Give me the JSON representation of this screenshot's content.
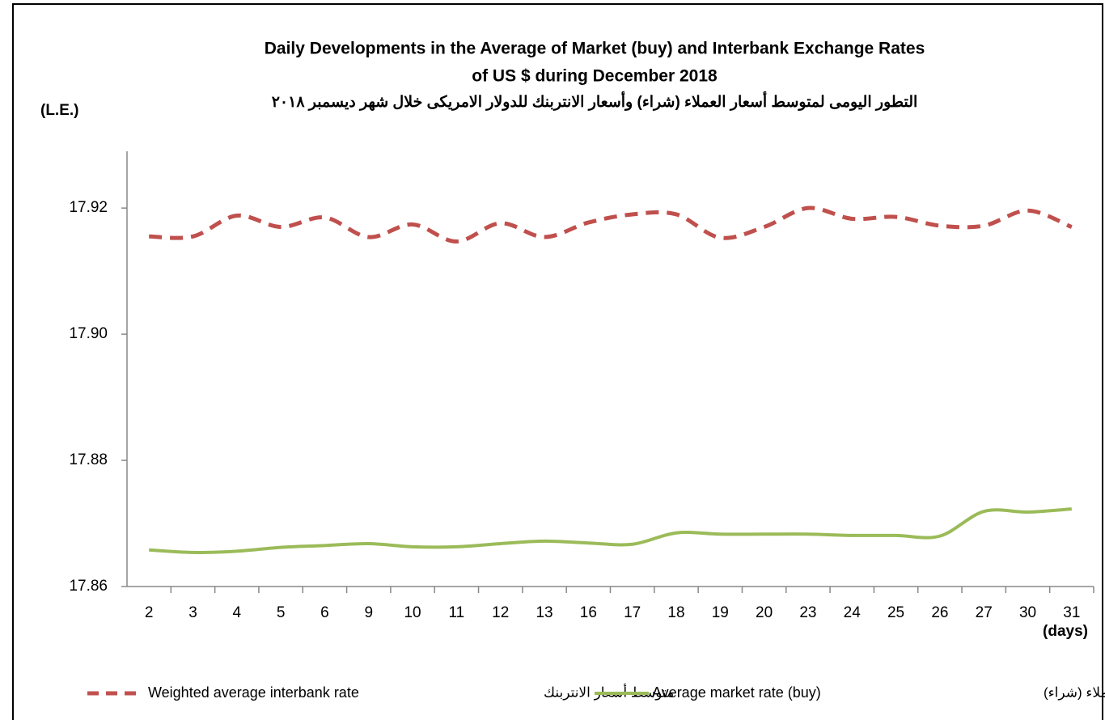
{
  "chart_data": {
    "type": "line",
    "title": [
      "Daily Developments in the Average of Market (buy) and Interbank Exchange Rates",
      "of US $ during December 2018"
    ],
    "subtitle": "التطور اليومى لمتوسط أسعار العملاء (شراء) وأسعار الانتربنك للدولار الامريكى خلال شهر ديسمبر ٢٠١٨",
    "y_label": "(L.E.)",
    "x_label": "(days)",
    "categories": [
      "2",
      "3",
      "4",
      "5",
      "6",
      "9",
      "10",
      "11",
      "12",
      "13",
      "16",
      "17",
      "18",
      "19",
      "20",
      "23",
      "24",
      "25",
      "26",
      "27",
      "30",
      "31"
    ],
    "series": [
      {
        "name": "Weighted average interbank rate",
        "name_ar": "متوسط أسعار الانتربنك",
        "color": "#c0504d",
        "dashed": true,
        "values": [
          17.9155,
          17.9155,
          17.9188,
          17.917,
          17.9185,
          17.9154,
          17.9174,
          17.9147,
          17.9176,
          17.9154,
          17.9177,
          17.919,
          17.919,
          17.9153,
          17.917,
          17.92,
          17.9183,
          17.9186,
          17.9172,
          17.9172,
          17.9196,
          17.917
        ]
      },
      {
        "name": "Average market rate (buy)",
        "name_ar": "متوسط أسعار العملاء (شراء)",
        "color": "#9bbb59",
        "dashed": false,
        "values": [
          17.8658,
          17.8654,
          17.8656,
          17.8662,
          17.8665,
          17.8668,
          17.8663,
          17.8663,
          17.8668,
          17.8672,
          17.8669,
          17.8667,
          17.8685,
          17.8683,
          17.8683,
          17.8683,
          17.8681,
          17.8681,
          17.868,
          17.8719,
          17.8718,
          17.8723
        ]
      }
    ],
    "ylim": [
      17.86,
      17.929
    ],
    "yticks": [
      17.86,
      17.88,
      {
        "value": 17.9,
        "label": "17.90"
      },
      17.92
    ],
    "grid": false
  }
}
